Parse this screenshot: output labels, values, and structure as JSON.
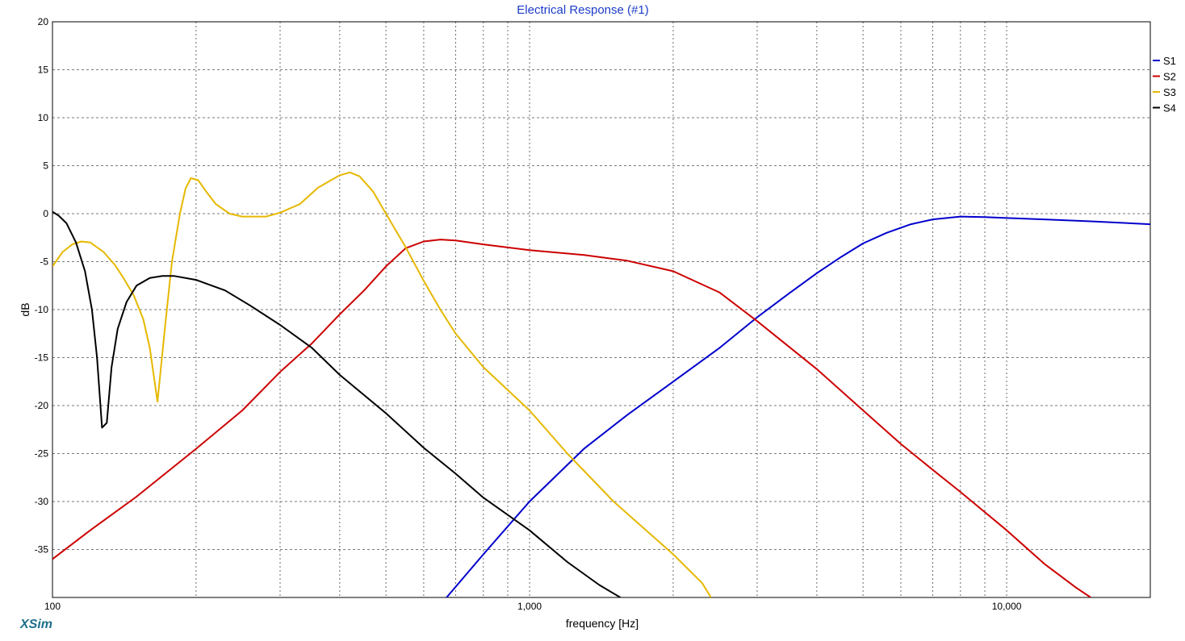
{
  "app": {
    "brand": "XSim"
  },
  "chart_data": {
    "type": "line",
    "title": "Electrical Response (#1)",
    "xlabel": "frequency [Hz]",
    "ylabel": "dB",
    "x_scale": "log",
    "xlim": [
      100,
      20000
    ],
    "ylim": [
      -40,
      20
    ],
    "grid": true,
    "legend_position": "right",
    "x_tick_labels": [
      {
        "value": 100,
        "label": "100"
      },
      {
        "value": 1000,
        "label": "1,000"
      },
      {
        "value": 10000,
        "label": "10,000"
      }
    ],
    "y_ticks": [
      20,
      15,
      10,
      5,
      0,
      -5,
      -10,
      -15,
      -20,
      -25,
      -30,
      -35
    ],
    "series": [
      {
        "name": "S1",
        "color": "#0000cc",
        "points": [
          [
            670,
            -40
          ],
          [
            800,
            -35.5
          ],
          [
            1000,
            -30
          ],
          [
            1300,
            -24.5
          ],
          [
            1600,
            -21
          ],
          [
            2000,
            -17.5
          ],
          [
            2500,
            -14
          ],
          [
            3000,
            -10.8
          ],
          [
            3500,
            -8.3
          ],
          [
            4000,
            -6.2
          ],
          [
            4500,
            -4.5
          ],
          [
            5000,
            -3.1
          ],
          [
            5600,
            -2
          ],
          [
            6300,
            -1.1
          ],
          [
            7000,
            -0.6
          ],
          [
            8000,
            -0.3
          ],
          [
            9000,
            -0.35
          ],
          [
            10000,
            -0.45
          ],
          [
            12000,
            -0.6
          ],
          [
            15000,
            -0.8
          ],
          [
            20000,
            -1.1
          ]
        ]
      },
      {
        "name": "S2",
        "color": "#cc0000",
        "points": [
          [
            100,
            -36
          ],
          [
            120,
            -33
          ],
          [
            150,
            -29.5
          ],
          [
            200,
            -24.5
          ],
          [
            250,
            -20.5
          ],
          [
            300,
            -16.5
          ],
          [
            350,
            -13.5
          ],
          [
            400,
            -10.5
          ],
          [
            450,
            -8
          ],
          [
            500,
            -5.5
          ],
          [
            550,
            -3.6
          ],
          [
            600,
            -2.9
          ],
          [
            650,
            -2.7
          ],
          [
            700,
            -2.8
          ],
          [
            800,
            -3.2
          ],
          [
            1000,
            -3.8
          ],
          [
            1300,
            -4.3
          ],
          [
            1600,
            -4.9
          ],
          [
            2000,
            -6
          ],
          [
            2500,
            -8.2
          ],
          [
            3000,
            -11.2
          ],
          [
            4000,
            -16.2
          ],
          [
            5000,
            -20.5
          ],
          [
            6000,
            -24
          ],
          [
            7000,
            -26.7
          ],
          [
            8000,
            -29
          ],
          [
            10000,
            -33
          ],
          [
            12000,
            -36.5
          ],
          [
            14000,
            -39
          ],
          [
            15000,
            -40
          ]
        ]
      },
      {
        "name": "S3",
        "color": "#e6b800",
        "points": [
          [
            100,
            -5.5
          ],
          [
            105,
            -4
          ],
          [
            110,
            -3.2
          ],
          [
            115,
            -2.9
          ],
          [
            120,
            -3
          ],
          [
            128,
            -4
          ],
          [
            135,
            -5.3
          ],
          [
            140,
            -6.5
          ],
          [
            148,
            -8.5
          ],
          [
            155,
            -11
          ],
          [
            160,
            -14
          ],
          [
            166,
            -19.6
          ],
          [
            172,
            -12
          ],
          [
            178,
            -5
          ],
          [
            185,
            0
          ],
          [
            190,
            2.6
          ],
          [
            195,
            3.7
          ],
          [
            202,
            3.5
          ],
          [
            210,
            2.3
          ],
          [
            220,
            1
          ],
          [
            235,
            0
          ],
          [
            250,
            -0.3
          ],
          [
            280,
            -0.3
          ],
          [
            300,
            0.1
          ],
          [
            330,
            1
          ],
          [
            360,
            2.7
          ],
          [
            400,
            4
          ],
          [
            420,
            4.3
          ],
          [
            440,
            3.9
          ],
          [
            470,
            2.3
          ],
          [
            500,
            0
          ],
          [
            550,
            -3.5
          ],
          [
            600,
            -7
          ],
          [
            650,
            -10
          ],
          [
            700,
            -12.5
          ],
          [
            800,
            -16
          ],
          [
            1000,
            -20.5
          ],
          [
            1200,
            -25
          ],
          [
            1500,
            -30
          ],
          [
            2000,
            -35.5
          ],
          [
            2300,
            -38.5
          ],
          [
            2400,
            -40
          ]
        ]
      },
      {
        "name": "S4",
        "color": "#000000",
        "points": [
          [
            100,
            0.2
          ],
          [
            103,
            -0.2
          ],
          [
            107,
            -1
          ],
          [
            112,
            -3
          ],
          [
            117,
            -6
          ],
          [
            121,
            -10
          ],
          [
            124,
            -15
          ],
          [
            127,
            -22.3
          ],
          [
            130,
            -21.8
          ],
          [
            133,
            -16
          ],
          [
            137,
            -12
          ],
          [
            143,
            -9.2
          ],
          [
            150,
            -7.5
          ],
          [
            160,
            -6.7
          ],
          [
            170,
            -6.5
          ],
          [
            180,
            -6.5
          ],
          [
            200,
            -6.9
          ],
          [
            230,
            -8
          ],
          [
            260,
            -9.6
          ],
          [
            300,
            -11.6
          ],
          [
            350,
            -14
          ],
          [
            400,
            -16.8
          ],
          [
            500,
            -20.8
          ],
          [
            600,
            -24.4
          ],
          [
            700,
            -27.1
          ],
          [
            800,
            -29.6
          ],
          [
            1000,
            -33
          ],
          [
            1200,
            -36.3
          ],
          [
            1400,
            -38.7
          ],
          [
            1550,
            -40
          ]
        ]
      }
    ]
  }
}
